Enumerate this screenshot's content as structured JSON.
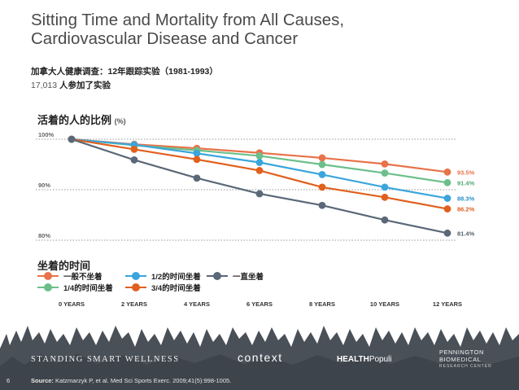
{
  "slide": {
    "title_line1": "Sitting Time and Mortality from All Causes,",
    "title_line2": "Cardiovascular Disease and Cancer",
    "subtitle": "加拿大人健康调查：12年跟踪实验（1981-1993）",
    "participants_num": "17,013",
    "participants_text": "人参加了实验",
    "page_number": "6"
  },
  "chart_data": {
    "type": "line",
    "ylabel": "活着的人的比例",
    "ylabel_unit": "(%)",
    "x": [
      "0 YEARS",
      "2 YEARS",
      "4 YEARS",
      "6 YEARS",
      "8 YEARS",
      "10 YEARS",
      "12 YEARS"
    ],
    "x_values": [
      0,
      2,
      4,
      6,
      8,
      10,
      12
    ],
    "yticks": [
      {
        "value": 100,
        "label": "100%"
      },
      {
        "value": 90,
        "label": "90%"
      },
      {
        "value": 80,
        "label": "80%"
      }
    ],
    "ylim": [
      80,
      100
    ],
    "grid": "dotted horizontal",
    "series": [
      {
        "name": "一般不坐着",
        "color": "#e8734a",
        "values": [
          100,
          99.0,
          98.2,
          97.3,
          96.3,
          95.1,
          93.5
        ],
        "end_label": "93.5%",
        "label_color": "#e8734a"
      },
      {
        "name": "1/4的时间坐着",
        "color": "#6cbf8a",
        "values": [
          100,
          98.8,
          97.8,
          96.7,
          95.0,
          93.3,
          91.4
        ],
        "end_label": "91.4%",
        "label_color": "#4fa872"
      },
      {
        "name": "1/2的时间坐着",
        "color": "#3aa6dc",
        "values": [
          100,
          98.9,
          97.2,
          95.4,
          93.0,
          90.5,
          88.3
        ],
        "end_label": "88.3%",
        "label_color": "#2a8fc8"
      },
      {
        "name": "3/4的时间坐着",
        "color": "#e0601e",
        "values": [
          100,
          98.0,
          96.0,
          93.8,
          90.5,
          88.5,
          86.2
        ],
        "end_label": "86.2%",
        "label_color": "#e0601e"
      },
      {
        "name": "一直坐着",
        "color": "#5a6878",
        "values": [
          100,
          95.9,
          92.3,
          89.2,
          86.9,
          84.0,
          81.4
        ],
        "end_label": "81.4%",
        "label_color": "#555f6a"
      }
    ],
    "legend_title": "坐着的时间",
    "legend_placement": "bottom-left"
  },
  "footer": {
    "logo_standing": "STANDING SMART WELLNESS",
    "logo_context": "context",
    "logo_healthpopuli_bold": "HEALTH",
    "logo_healthpopuli_rest": "Populi",
    "logo_pennington_1": "PENNINGTON",
    "logo_pennington_2": "BIOMEDICAL",
    "logo_pennington_3": "RESEARCH CENTER",
    "source_label": "Source:",
    "source_text": "Katzmarzyk P, et al. Med Sci Sports Exerc. 2009;41(5):998-1005."
  },
  "colors": {
    "background": "#ffffff",
    "grunge": "#4a5058",
    "title": "#4a4a4a"
  }
}
